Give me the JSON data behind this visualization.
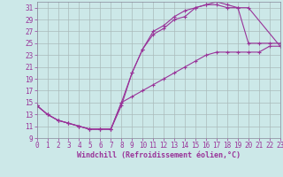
{
  "bg_color": "#cce8e8",
  "grid_color": "#aabbbb",
  "line_color": "#993399",
  "xlabel": "Windchill (Refroidissement éolien,°C)",
  "xlim": [
    0,
    23
  ],
  "ylim": [
    9,
    32
  ],
  "xticks": [
    0,
    1,
    2,
    3,
    4,
    5,
    6,
    7,
    8,
    9,
    10,
    11,
    12,
    13,
    14,
    15,
    16,
    17,
    18,
    19,
    20,
    21,
    22,
    23
  ],
  "yticks": [
    9,
    11,
    13,
    15,
    17,
    19,
    21,
    23,
    25,
    27,
    29,
    31
  ],
  "line1_x": [
    0,
    1,
    2,
    3,
    4,
    5,
    6,
    7,
    8,
    9,
    10,
    11,
    12,
    13,
    14,
    15,
    16,
    17,
    18,
    19,
    20,
    21,
    22,
    23
  ],
  "line1_y": [
    14.5,
    13.0,
    12.0,
    11.5,
    11.0,
    10.5,
    10.5,
    10.5,
    14.5,
    20.0,
    24.0,
    26.5,
    27.5,
    29.0,
    29.5,
    31.0,
    31.5,
    32.0,
    31.5,
    31.0,
    25.0,
    25.0,
    25.0,
    25.0
  ],
  "line2_x": [
    0,
    1,
    2,
    3,
    4,
    5,
    6,
    7,
    8,
    9,
    10,
    11,
    12,
    13,
    14,
    15,
    16,
    17,
    18,
    19,
    20,
    23
  ],
  "line2_y": [
    14.5,
    13.0,
    12.0,
    11.5,
    11.0,
    10.5,
    10.5,
    10.5,
    15.0,
    20.0,
    24.0,
    27.0,
    28.0,
    29.5,
    30.5,
    31.0,
    31.5,
    31.5,
    31.0,
    31.0,
    31.0,
    24.5
  ],
  "line3_x": [
    0,
    1,
    2,
    3,
    4,
    5,
    6,
    7,
    8,
    9,
    10,
    11,
    12,
    13,
    14,
    15,
    16,
    17,
    18,
    19,
    20,
    21,
    22,
    23
  ],
  "line3_y": [
    14.5,
    13.0,
    12.0,
    11.5,
    11.0,
    10.5,
    10.5,
    10.5,
    15.0,
    16.0,
    17.0,
    18.0,
    19.0,
    20.0,
    21.0,
    22.0,
    23.0,
    23.5,
    23.5,
    23.5,
    23.5,
    23.5,
    24.5,
    24.5
  ],
  "tick_fontsize": 5.5,
  "xlabel_fontsize": 6.0
}
